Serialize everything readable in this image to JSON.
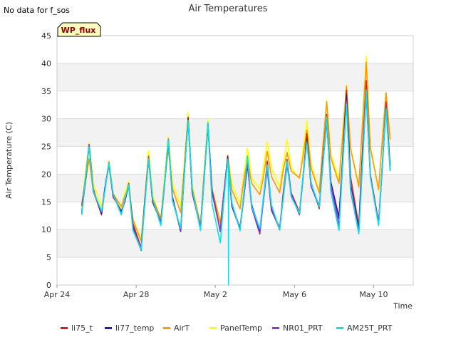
{
  "chart_data": {
    "type": "line",
    "title": "Air Temperatures",
    "xlabel": "Time",
    "ylabel": "Air Temperature (C)",
    "no_data_note": "No data for f_sos",
    "badge": "WP_flux",
    "ylim": [
      0,
      45
    ],
    "xlim": [
      "2024-04-24",
      "2024-05-12"
    ],
    "yticks": [
      0,
      5,
      10,
      15,
      20,
      25,
      30,
      35,
      40,
      45
    ],
    "xticks": [
      {
        "date": "2024-04-24",
        "label": "Apr 24"
      },
      {
        "date": "2024-04-28",
        "label": "Apr 28"
      },
      {
        "date": "2024-05-02",
        "label": "May 2"
      },
      {
        "date": "2024-05-06",
        "label": "May 6"
      },
      {
        "date": "2024-05-10",
        "label": "May 10"
      }
    ],
    "grid": true,
    "legend_position": "bottom",
    "days": [
      "2024-04-25",
      "2024-04-26",
      "2024-04-27",
      "2024-04-28",
      "2024-04-29",
      "2024-04-30",
      "2024-05-01",
      "2024-05-02",
      "2024-05-03",
      "2024-05-04",
      "2024-05-05",
      "2024-05-06",
      "2024-05-07",
      "2024-05-08",
      "2024-05-09",
      "2024-05-10",
      "2024-05-11"
    ],
    "series": [
      {
        "name": "li75_t",
        "color": "#e31a1c",
        "daily_max": [
          25,
          22,
          18,
          23,
          26,
          30,
          29,
          23,
          22,
          22,
          23,
          27,
          31,
          35,
          37,
          33,
          34
        ],
        "daily_min": [
          14,
          13,
          13,
          7,
          11,
          10,
          10,
          10,
          10,
          10,
          10,
          13,
          14,
          12,
          11,
          11,
          15
        ]
      },
      {
        "name": "li77_temp",
        "color": "#1f1fb4",
        "daily_max": [
          25,
          22,
          18,
          23,
          26,
          30,
          29,
          23,
          22,
          21,
          22,
          26,
          30,
          34,
          35,
          32,
          32
        ],
        "daily_min": [
          13,
          13,
          13,
          6.5,
          11,
          10,
          10,
          10,
          10,
          10,
          10,
          13,
          14,
          12,
          10,
          11,
          15
        ]
      },
      {
        "name": "AirT",
        "color": "#ff9900",
        "daily_max": [
          23,
          22,
          18,
          23,
          25,
          30,
          29,
          23,
          23,
          24,
          24,
          28,
          33,
          36,
          40,
          35,
          35
        ],
        "daily_min": [
          14,
          13,
          14,
          8,
          12,
          13,
          11,
          11,
          14,
          16,
          17,
          19,
          17,
          18,
          18,
          17,
          21
        ]
      },
      {
        "name": "PanelTemp",
        "color": "#ffff00",
        "daily_max": [
          26,
          22,
          19,
          24,
          27,
          31,
          30,
          23.5,
          24.5,
          26,
          26,
          30,
          33,
          36.5,
          41,
          35,
          35
        ],
        "daily_min": [
          14,
          14,
          14,
          8,
          12,
          14,
          11,
          11,
          15,
          17,
          18,
          19,
          17,
          19,
          18,
          17,
          21
        ]
      },
      {
        "name": "NR01_PRT",
        "color": "#9933cc",
        "daily_max": [
          25,
          22,
          18,
          23,
          26,
          30,
          29,
          23,
          22,
          21,
          22,
          26,
          30,
          33,
          35,
          32,
          31
        ],
        "daily_min": [
          13,
          13,
          13,
          6.5,
          11,
          10,
          10,
          10,
          10,
          9.5,
          10,
          13,
          14,
          11,
          9,
          11,
          15
        ]
      },
      {
        "name": "AM25T_PRT",
        "color": "#00e5ee",
        "daily_max": [
          25,
          22,
          18,
          23,
          26,
          30,
          29,
          23,
          23,
          22,
          22,
          26,
          30,
          33,
          35,
          32,
          31
        ],
        "daily_min": [
          13,
          13,
          13,
          6,
          11,
          10,
          10,
          7.5,
          10,
          10,
          10,
          13,
          14,
          10,
          9,
          11,
          14.5
        ],
        "dropout": {
          "date": "2024-05-02T16:00",
          "value": 0
        }
      }
    ]
  }
}
